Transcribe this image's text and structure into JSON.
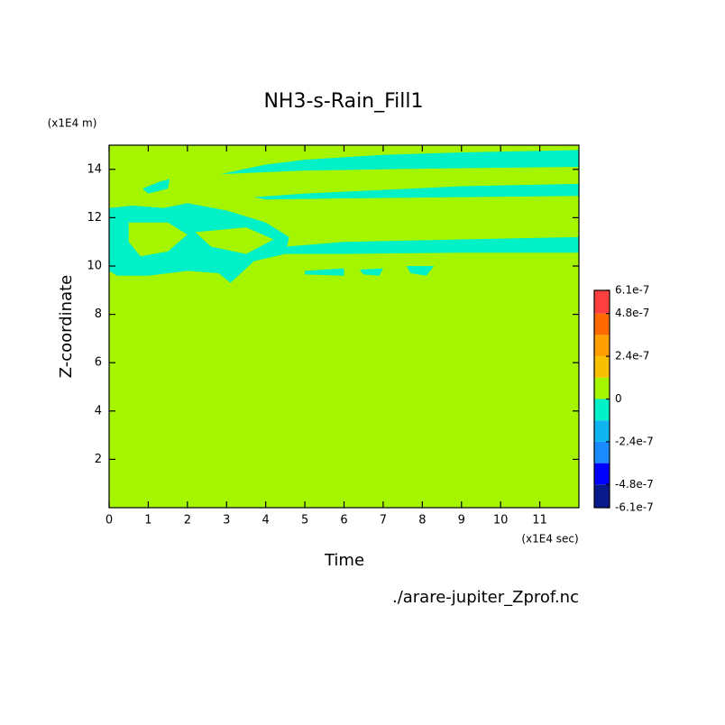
{
  "chart_data": {
    "type": "contour",
    "title": "NH3-s-Rain_Fill1",
    "xlabel": "Time",
    "ylabel": "Z-coordinate",
    "x_unit": "(x1E4 sec)",
    "y_unit": "(x1E4 m)",
    "source": "./arare-jupiter_Zprof.nc",
    "xlim": [
      0,
      12
    ],
    "ylim": [
      0,
      15
    ],
    "xticks": [
      0,
      1,
      2,
      3,
      4,
      5,
      6,
      7,
      8,
      9,
      10,
      11
    ],
    "yticks": [
      2,
      4,
      6,
      8,
      10,
      12,
      14
    ],
    "background_color": "#a6f500",
    "levels": [
      -6.1e-07,
      -4.8e-07,
      -3.6e-07,
      -2.4e-07,
      -1.2e-07,
      0,
      1.2e-07,
      2.4e-07,
      3.6e-07,
      4.8e-07,
      6.1e-07
    ],
    "level_colors": [
      "#0a1a8c",
      "#0000ff",
      "#1a8cff",
      "#10b4f0",
      "#00f0c8",
      "#a6f500",
      "#f8c000",
      "#ffa000",
      "#ff6a00",
      "#ff4040"
    ],
    "colorbar_ticks": [
      6.1e-07,
      4.8e-07,
      2.4e-07,
      0,
      -2.4e-07,
      -4.8e-07,
      -6.1e-07
    ],
    "regions": [
      {
        "color": "#00f0c8",
        "x": [
          2.85,
          4,
          5,
          7,
          9,
          12,
          12,
          9,
          7,
          5,
          3.5
        ],
        "y": [
          13.8,
          14.2,
          14.4,
          14.6,
          14.7,
          14.8,
          14.1,
          14.05,
          14.0,
          13.95,
          13.85
        ]
      },
      {
        "color": "#00f0c8",
        "x": [
          3.7,
          5,
          7,
          9,
          12,
          12,
          9,
          6,
          4
        ],
        "y": [
          12.85,
          13.0,
          13.15,
          13.3,
          13.4,
          12.9,
          12.85,
          12.8,
          12.75
        ]
      },
      {
        "color": "#00f0c8",
        "x": [
          4.5,
          6,
          9,
          12,
          12,
          9,
          6,
          4.5
        ],
        "y": [
          10.8,
          11.0,
          11.1,
          11.2,
          10.55,
          10.55,
          10.5,
          10.5
        ]
      },
      {
        "color": "#00f0c8",
        "x": [
          0,
          0.6,
          1.4,
          2,
          3,
          4,
          4.6,
          4.5,
          3.7,
          3.1,
          2.8,
          2,
          1,
          0.2,
          0
        ],
        "y": [
          12.4,
          12.5,
          12.4,
          12.6,
          12.3,
          11.8,
          11.2,
          10.5,
          10.2,
          9.3,
          9.7,
          9.8,
          9.6,
          9.6,
          9.8
        ]
      },
      {
        "color": "#a6f500",
        "x": [
          0.5,
          1.5,
          2,
          1.5,
          0.8,
          0.5
        ],
        "y": [
          11.8,
          11.8,
          11.3,
          10.6,
          10.4,
          11
        ]
      },
      {
        "color": "#a6f500",
        "x": [
          2.2,
          3.5,
          4.2,
          3.5,
          2.6
        ],
        "y": [
          11.4,
          11.6,
          11.1,
          10.5,
          10.8
        ]
      },
      {
        "color": "#00f0c8",
        "x": [
          0.85,
          1.3,
          1.55,
          1.5,
          1.0
        ],
        "y": [
          13.2,
          13.5,
          13.6,
          13.2,
          13.0
        ]
      },
      {
        "color": "#00f0c8",
        "x": [
          5.0,
          6.0,
          6.0,
          5.0
        ],
        "y": [
          9.8,
          9.9,
          9.6,
          9.65
        ]
      },
      {
        "color": "#00f0c8",
        "x": [
          6.4,
          7.0,
          6.9,
          6.5
        ],
        "y": [
          9.85,
          9.9,
          9.6,
          9.65
        ]
      },
      {
        "color": "#00f0c8",
        "x": [
          7.6,
          8.3,
          8.1,
          7.7
        ],
        "y": [
          10.0,
          10.0,
          9.6,
          9.7
        ]
      }
    ]
  }
}
